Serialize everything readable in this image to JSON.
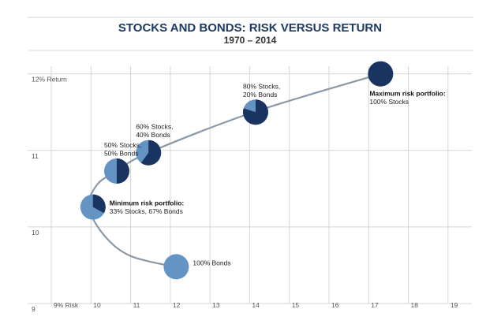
{
  "chart_data": {
    "type": "scatter",
    "title": "STOCKS AND BONDS: RISK VERSUS RETURN",
    "subtitle": "1970 – 2014",
    "xlim": [
      9,
      19.6
    ],
    "ylim": [
      9,
      12.1
    ],
    "x_ticks": [
      {
        "value": 9,
        "label": "9% Risk"
      },
      {
        "value": 10,
        "label": "10"
      },
      {
        "value": 11,
        "label": "11"
      },
      {
        "value": 12,
        "label": "12"
      },
      {
        "value": 13,
        "label": "13"
      },
      {
        "value": 14,
        "label": "14"
      },
      {
        "value": 15,
        "label": "15"
      },
      {
        "value": 16,
        "label": "16"
      },
      {
        "value": 17,
        "label": "17"
      },
      {
        "value": 18,
        "label": "18"
      },
      {
        "value": 19,
        "label": "19"
      }
    ],
    "y_ticks": [
      {
        "value": 12,
        "label": "12% Return"
      },
      {
        "value": 11,
        "label": "11"
      },
      {
        "value": 10,
        "label": "10"
      },
      {
        "value": 9,
        "label": "9"
      }
    ],
    "grid": true,
    "colors": {
      "stocks": "#1a3461",
      "bonds": "#6494c3",
      "curve": "#8898a6",
      "title": "#1c3a63"
    },
    "curve": [
      {
        "x": 12.1,
        "y": 9.48
      },
      {
        "x": 11.0,
        "y": 9.62
      },
      {
        "x": 10.35,
        "y": 9.88
      },
      {
        "x": 9.95,
        "y": 10.25
      },
      {
        "x": 10.15,
        "y": 10.55
      },
      {
        "x": 10.65,
        "y": 10.73
      },
      {
        "x": 11.45,
        "y": 10.97
      },
      {
        "x": 14.1,
        "y": 11.5
      },
      {
        "x": 17.3,
        "y": 12.0
      }
    ],
    "points": [
      {
        "x": 12.15,
        "y": 9.48,
        "stocks": 0,
        "labels": [
          "100% Bonds"
        ],
        "label_pos": "right"
      },
      {
        "x": 10.05,
        "y": 10.26,
        "stocks": 33,
        "labels": [
          "Minimum risk portfolio:",
          "33% Stocks, 67% Bonds"
        ],
        "bold_first": true,
        "label_pos": "right"
      },
      {
        "x": 10.65,
        "y": 10.73,
        "stocks": 50,
        "labels": [
          "50% Stocks,",
          "50% Bonds"
        ],
        "label_pos": "above"
      },
      {
        "x": 11.45,
        "y": 10.97,
        "stocks": 60,
        "labels": [
          "60% Stocks,",
          "40% Bonds"
        ],
        "label_pos": "above"
      },
      {
        "x": 14.15,
        "y": 11.5,
        "stocks": 80,
        "labels": [
          "80% Stocks,",
          "20% Bonds"
        ],
        "label_pos": "above"
      },
      {
        "x": 17.3,
        "y": 12.0,
        "stocks": 100,
        "labels": [
          "Maximum risk portfolio:",
          "100% Stocks"
        ],
        "bold_first": true,
        "label_pos": "below"
      }
    ]
  }
}
